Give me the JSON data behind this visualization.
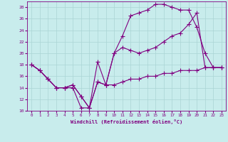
{
  "xlabel": "Windchill (Refroidissement éolien,°C)",
  "background_color": "#c8ecec",
  "grid_color": "#aad4d4",
  "line_color": "#800080",
  "xlim": [
    -0.5,
    23.5
  ],
  "ylim": [
    10,
    29
  ],
  "yticks": [
    10,
    12,
    14,
    16,
    18,
    20,
    22,
    24,
    26,
    28
  ],
  "xticks": [
    0,
    1,
    2,
    3,
    4,
    5,
    6,
    7,
    8,
    9,
    10,
    11,
    12,
    13,
    14,
    15,
    16,
    17,
    18,
    19,
    20,
    21,
    22,
    23
  ],
  "line1_x": [
    0,
    1,
    2,
    3,
    4,
    5,
    6,
    7,
    8,
    9,
    10,
    11,
    12,
    13,
    14,
    15,
    16,
    17,
    18,
    19,
    20,
    21,
    22,
    23
  ],
  "line1_y": [
    18,
    17,
    15.5,
    14,
    14,
    14,
    10.5,
    10.5,
    15,
    14.5,
    20,
    23,
    26.5,
    27,
    27.5,
    28.5,
    28.5,
    28,
    27.5,
    27.5,
    24.5,
    20,
    17.5,
    17.5
  ],
  "line2_x": [
    0,
    1,
    2,
    3,
    4,
    5,
    6,
    7,
    8,
    9,
    10,
    11,
    12,
    13,
    14,
    15,
    16,
    17,
    18,
    19,
    20,
    21,
    22,
    23
  ],
  "line2_y": [
    18,
    17,
    15.5,
    14,
    14,
    14.5,
    12.5,
    10.5,
    18.5,
    14.5,
    20,
    21,
    20.5,
    20,
    20.5,
    21,
    22,
    23,
    23.5,
    25,
    27,
    17.5,
    17.5,
    17.5
  ],
  "line3_x": [
    0,
    1,
    2,
    3,
    4,
    5,
    6,
    7,
    8,
    9,
    10,
    11,
    12,
    13,
    14,
    15,
    16,
    17,
    18,
    19,
    20,
    21,
    22,
    23
  ],
  "line3_y": [
    18,
    17,
    15.5,
    14,
    14,
    14.5,
    12.5,
    10.5,
    15,
    14.5,
    14.5,
    15,
    15.5,
    15.5,
    16,
    16,
    16.5,
    16.5,
    17,
    17,
    17,
    17.5,
    17.5,
    17.5
  ]
}
